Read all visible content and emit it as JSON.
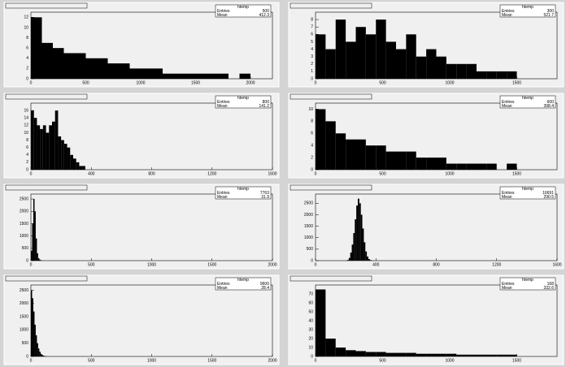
{
  "chart_data": [
    {
      "type": "histogram",
      "color": "#000000",
      "bins": [
        0,
        100,
        200,
        300,
        400,
        500,
        600,
        700,
        800,
        900,
        1000,
        1100,
        1200,
        1300,
        1400,
        1500,
        1600,
        1700,
        1800,
        1900,
        2000
      ],
      "counts": [
        12,
        7,
        6,
        5,
        5,
        4,
        4,
        3,
        3,
        2,
        2,
        2,
        1,
        1,
        1,
        1,
        1,
        1,
        0,
        1
      ],
      "xlim": [
        0,
        2200
      ],
      "xticks": [
        0,
        500,
        1000,
        1500,
        2000
      ],
      "ylim": [
        0,
        13
      ],
      "yticks": [
        0,
        2,
        4,
        6,
        8,
        10,
        12
      ],
      "stats": {
        "name": "htemp",
        "labels": [
          "Entries",
          "Mean"
        ],
        "values": [
          500,
          412.3
        ]
      }
    },
    {
      "type": "histogram",
      "color": "#000000",
      "bins": [
        0,
        75,
        150,
        225,
        300,
        375,
        450,
        525,
        600,
        675,
        750,
        825,
        900,
        975,
        1050,
        1125,
        1200,
        1275,
        1350,
        1425,
        1500
      ],
      "counts": [
        6,
        4,
        8,
        5,
        7,
        6,
        8,
        5,
        4,
        6,
        3,
        4,
        3,
        2,
        2,
        2,
        1,
        1,
        1,
        1
      ],
      "xlim": [
        0,
        1800
      ],
      "xticks": [
        0,
        500,
        1000,
        1500
      ],
      "ylim": [
        0,
        9
      ],
      "yticks": [
        0,
        1,
        2,
        3,
        4,
        5,
        6,
        7,
        8
      ],
      "stats": {
        "name": "htemp",
        "labels": [
          "Entries",
          "Mean"
        ],
        "values": [
          300,
          521.7
        ]
      }
    },
    {
      "type": "histogram",
      "color": "#000000",
      "bins": [
        0,
        20,
        40,
        60,
        80,
        100,
        120,
        140,
        160,
        180,
        200,
        220,
        240,
        260,
        280,
        300,
        320,
        340,
        360,
        380,
        400
      ],
      "counts": [
        16,
        14,
        12,
        11,
        12,
        10,
        12,
        13,
        16,
        9,
        8,
        7,
        6,
        4,
        3,
        2,
        1,
        1,
        0,
        0
      ],
      "xlim": [
        0,
        1600
      ],
      "xticks": [
        0,
        400,
        800,
        1200,
        1600
      ],
      "ylim": [
        0,
        18
      ],
      "yticks": [
        0,
        2,
        4,
        6,
        8,
        10,
        12,
        14,
        16
      ],
      "stats": {
        "name": "htemp",
        "labels": [
          "Entries",
          "Mean"
        ],
        "values": [
          800,
          141.2
        ]
      }
    },
    {
      "type": "histogram",
      "color": "#000000",
      "bins": [
        0,
        75,
        150,
        225,
        300,
        375,
        450,
        525,
        600,
        675,
        750,
        825,
        900,
        975,
        1050,
        1125,
        1200,
        1275,
        1350,
        1425,
        1500
      ],
      "counts": [
        10,
        8,
        6,
        5,
        5,
        4,
        4,
        3,
        3,
        3,
        2,
        2,
        2,
        1,
        1,
        1,
        1,
        1,
        0,
        1
      ],
      "xlim": [
        0,
        1800
      ],
      "xticks": [
        0,
        500,
        1000,
        1500
      ],
      "ylim": [
        0,
        11
      ],
      "yticks": [
        0,
        2,
        4,
        6,
        8,
        10
      ],
      "stats": {
        "name": "htemp",
        "labels": [
          "Entries",
          "Mean"
        ],
        "values": [
          600,
          398.4
        ]
      }
    },
    {
      "type": "histogram",
      "color": "#000000",
      "bins": [
        0,
        10,
        20,
        30,
        40,
        50,
        60,
        70,
        80,
        90,
        100,
        110,
        120,
        130,
        140,
        150,
        160,
        170,
        180,
        190,
        200
      ],
      "counts": [
        400,
        1500,
        2500,
        2000,
        900,
        300,
        100,
        40,
        15,
        5,
        2,
        1,
        0,
        0,
        0,
        0,
        0,
        0,
        0,
        0
      ],
      "xlim": [
        0,
        2000
      ],
      "xticks": [
        0,
        500,
        1000,
        1500,
        2000
      ],
      "ylim": [
        0,
        2700
      ],
      "yticks": [
        0,
        500,
        1000,
        1500,
        2000,
        2500
      ],
      "stats": {
        "name": "htemp",
        "labels": [
          "Entries",
          "Mean"
        ],
        "values": [
          7763,
          31.9
        ]
      }
    },
    {
      "type": "histogram",
      "color": "#000000",
      "bins": [
        200,
        210,
        220,
        230,
        240,
        250,
        260,
        270,
        280,
        290,
        300,
        310,
        320,
        330,
        340,
        350,
        360,
        370,
        380,
        390,
        400
      ],
      "counts": [
        5,
        30,
        120,
        350,
        700,
        1200,
        1800,
        2400,
        2700,
        2500,
        2000,
        1400,
        800,
        400,
        180,
        70,
        25,
        8,
        2,
        1
      ],
      "xlim": [
        0,
        1600
      ],
      "xticks": [
        0,
        400,
        800,
        1200,
        1600
      ],
      "ylim": [
        0,
        2900
      ],
      "yticks": [
        0,
        500,
        1000,
        1500,
        2000,
        2500
      ],
      "stats": {
        "name": "htemp",
        "labels": [
          "Entries",
          "Mean"
        ],
        "values": [
          16691,
          290.5
        ]
      }
    },
    {
      "type": "histogram",
      "color": "#000000",
      "bins": [
        0,
        10,
        20,
        30,
        40,
        50,
        60,
        70,
        80,
        90,
        100,
        110,
        120,
        130,
        140,
        150,
        160,
        170,
        180,
        190,
        200
      ],
      "counts": [
        2500,
        2200,
        1700,
        1200,
        800,
        500,
        300,
        180,
        100,
        60,
        30,
        15,
        8,
        4,
        2,
        1,
        0,
        0,
        0,
        0
      ],
      "xlim": [
        0,
        2000
      ],
      "xticks": [
        0,
        500,
        1000,
        1500,
        2000
      ],
      "ylim": [
        0,
        2700
      ],
      "yticks": [
        0,
        500,
        1000,
        1500,
        2000,
        2500
      ],
      "stats": {
        "name": "htemp",
        "labels": [
          "Entries",
          "Mean"
        ],
        "values": [
          9600,
          28.4
        ]
      }
    },
    {
      "type": "histogram",
      "color": "#000000",
      "bins": [
        0,
        75,
        150,
        225,
        300,
        375,
        450,
        525,
        600,
        675,
        750,
        825,
        900,
        975,
        1050,
        1125,
        1200,
        1275,
        1350,
        1425,
        1500
      ],
      "counts": [
        75,
        20,
        10,
        7,
        6,
        5,
        5,
        4,
        4,
        4,
        3,
        3,
        3,
        3,
        2,
        2,
        2,
        2,
        2,
        2
      ],
      "xlim": [
        0,
        1800
      ],
      "xticks": [
        0,
        500,
        1000,
        1500
      ],
      "ylim": [
        0,
        80
      ],
      "yticks": [
        0,
        10,
        20,
        30,
        40,
        50,
        60,
        70
      ],
      "stats": {
        "name": "htemp",
        "labels": [
          "Entries",
          "Mean"
        ],
        "values": [
          168,
          332.6
        ]
      }
    }
  ]
}
